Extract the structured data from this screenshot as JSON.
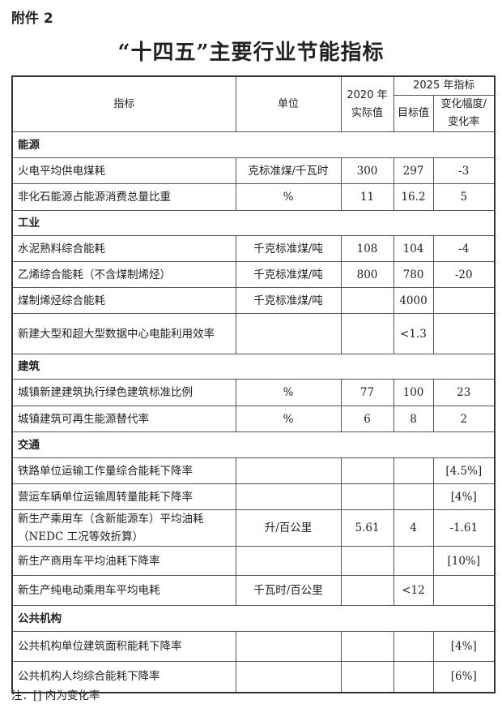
{
  "attachment_label": "附件 2",
  "title": "“十四五”主要行业节能指标",
  "header": {
    "indicator": "指标",
    "unit": "单位",
    "actual_2020_line1": "2020 年",
    "actual_2020_line2": "实际值",
    "target_2025": "2025 年指标",
    "target_value": "目标值",
    "change_line1": "变化幅度/",
    "change_line2": "变化率"
  },
  "sections": [
    {
      "name": "能源",
      "rows": [
        {
          "indicator": "火电平均供电煤耗",
          "unit": "克标准煤/千瓦时",
          "actual": "300",
          "target": "297",
          "change": "-3"
        },
        {
          "indicator": "非化石能源占能源消费总量比重",
          "unit": "%",
          "actual": "11",
          "target": "16.2",
          "change": "5"
        }
      ]
    },
    {
      "name": "工业",
      "rows": [
        {
          "indicator": "水泥熟料综合能耗",
          "unit": "千克标准煤/吨",
          "actual": "108",
          "target": "104",
          "change": "-4"
        },
        {
          "indicator": "乙烯综合能耗（不含煤制烯烃）",
          "unit": "千克标准煤/吨",
          "actual": "800",
          "target": "780",
          "change": "-20"
        },
        {
          "indicator": "煤制烯烃综合能耗",
          "unit": "千克标准煤/吨",
          "actual": "",
          "target": "4000",
          "change": ""
        },
        {
          "indicator": "新建大型和超大型数据中心电能利用效率",
          "unit": "",
          "actual": "",
          "target": "<1.3",
          "change": ""
        }
      ]
    },
    {
      "name": "建筑",
      "rows": [
        {
          "indicator": "城镇新建建筑执行绿色建筑标准比例",
          "unit": "%",
          "actual": "77",
          "target": "100",
          "change": "23"
        },
        {
          "indicator": "城镇建筑可再生能源替代率",
          "unit": "%",
          "actual": "6",
          "target": "8",
          "change": "2"
        }
      ]
    },
    {
      "name": "交通",
      "rows": [
        {
          "indicator": "铁路单位运输工作量综合能耗下降率",
          "unit": "",
          "actual": "",
          "target": "",
          "change": "[4.5%]"
        },
        {
          "indicator": "营运车辆单位运输周转量能耗下降率",
          "unit": "",
          "actual": "",
          "target": "",
          "change": "[4%]"
        },
        {
          "indicator": "新生产乘用车（含新能源车）平均油耗（NEDC 工况等效折算）",
          "unit": "升/百公里",
          "actual": "5.61",
          "target": "4",
          "change": "-1.61"
        },
        {
          "indicator": "新生产商用车平均油耗下降率",
          "unit": "",
          "actual": "",
          "target": "",
          "change": "[10%]"
        },
        {
          "indicator": "新生产纯电动乘用车平均电耗",
          "unit": "千瓦时/百公里",
          "actual": "",
          "target": "<12",
          "change": ""
        }
      ]
    },
    {
      "name": "公共机构",
      "rows": [
        {
          "indicator": "公共机构单位建筑面积能耗下降率",
          "unit": "",
          "actual": "",
          "target": "",
          "change": "[4%]"
        },
        {
          "indicator": "公共机构人均综合能耗下降率",
          "unit": "",
          "actual": "",
          "target": "",
          "change": "[6%]"
        }
      ]
    }
  ],
  "note": "注：[] 内为变化率"
}
